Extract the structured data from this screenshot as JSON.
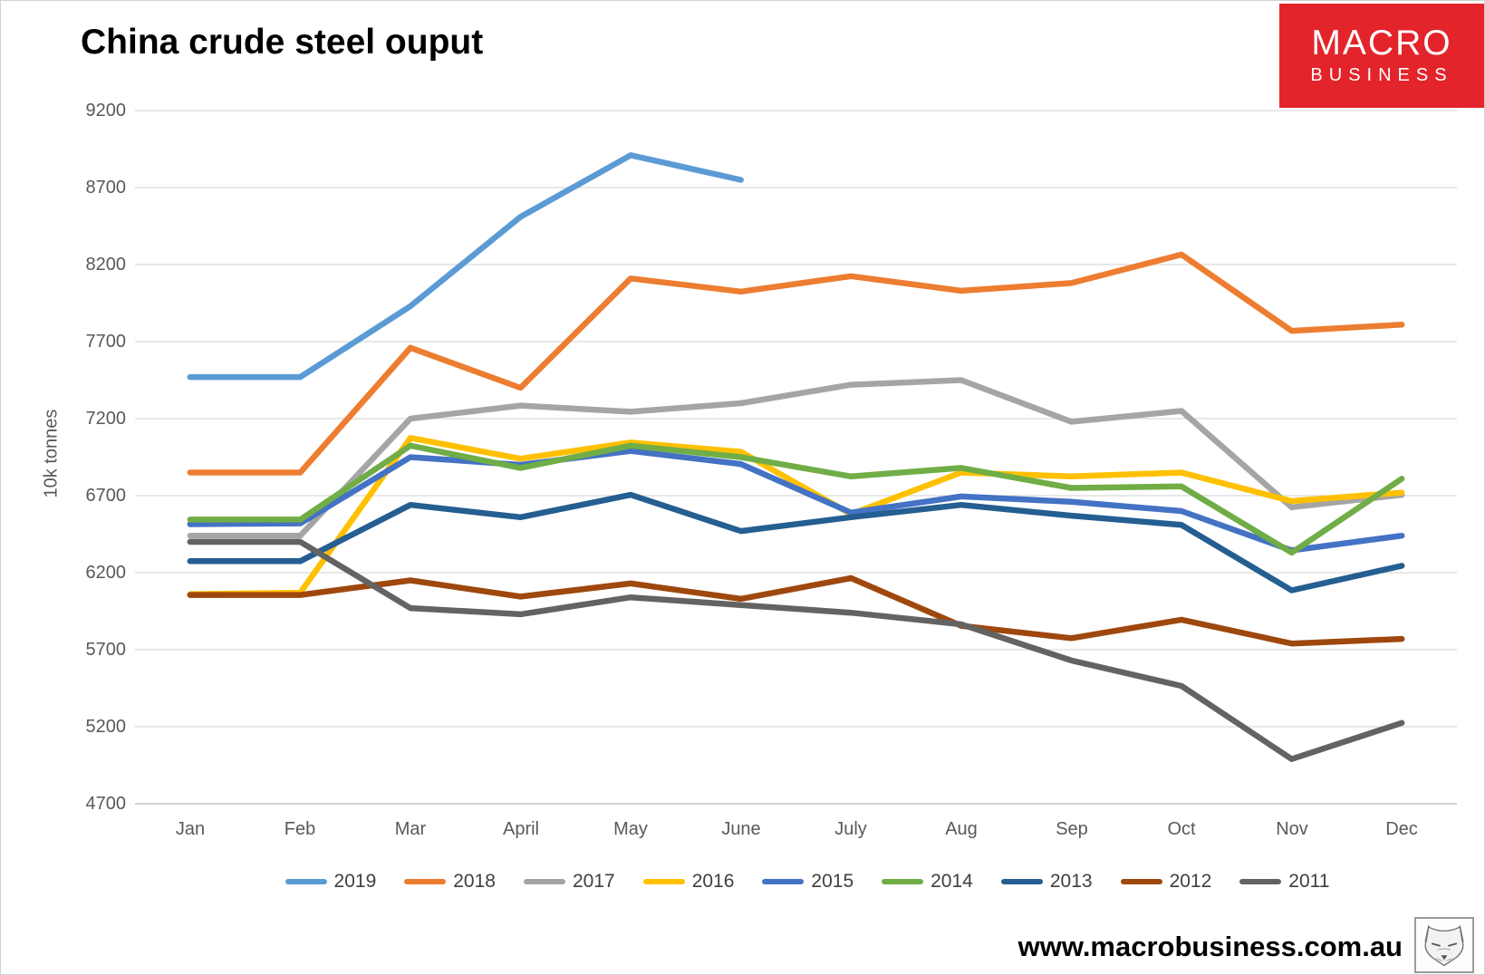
{
  "title": "China crude steel ouput",
  "logo": {
    "line1": "MACRO",
    "line2": "BUSINESS",
    "bg_color": "#E3242B"
  },
  "footer": {
    "website": "www.macrobusiness.com.au",
    "logo_icon": "wolf-sketch-icon"
  },
  "axis": {
    "ylabel": "10k tonnes",
    "y_ticks": [
      "9200",
      "8700",
      "8200",
      "7700",
      "7200",
      "6700",
      "6200",
      "5700",
      "5200",
      "4700"
    ],
    "grid_color": "#D9D9D9",
    "axis_color": "#C0C0C0",
    "text_color": "#595959"
  },
  "chart_data": {
    "type": "line",
    "title": "China crude steel ouput",
    "xlabel": "",
    "ylabel": "10k tonnes",
    "ylim": [
      4700,
      9200
    ],
    "ytick_step": 500,
    "grid": true,
    "legend_position": "bottom",
    "categories": [
      "Jan",
      "Feb",
      "Mar",
      "April",
      "May",
      "June",
      "July",
      "Aug",
      "Sep",
      "Oct",
      "Nov",
      "Dec"
    ],
    "series": [
      {
        "name": "2019",
        "color": "#5B9BD5",
        "values": [
          7470,
          7470,
          7930,
          8510,
          8910,
          8750,
          null,
          null,
          null,
          null,
          null,
          null
        ]
      },
      {
        "name": "2018",
        "color": "#ED7D31",
        "values": [
          6850,
          6850,
          7660,
          7400,
          8110,
          8025,
          8125,
          8030,
          8080,
          8265,
          7770,
          7810
        ]
      },
      {
        "name": "2017",
        "color": "#A5A5A5",
        "values": [
          6440,
          6440,
          7200,
          7285,
          7245,
          7300,
          7420,
          7450,
          7180,
          7250,
          6625,
          6705
        ]
      },
      {
        "name": "2016",
        "color": "#FFC000",
        "values": [
          6060,
          6070,
          7075,
          6940,
          7045,
          6985,
          6580,
          6850,
          6825,
          6850,
          6665,
          6720
        ]
      },
      {
        "name": "2015",
        "color": "#4472C4",
        "values": [
          6515,
          6520,
          6950,
          6900,
          6990,
          6905,
          6590,
          6695,
          6660,
          6600,
          6345,
          6440
        ]
      },
      {
        "name": "2014",
        "color": "#70AD47",
        "values": [
          6545,
          6545,
          7025,
          6880,
          7025,
          6950,
          6825,
          6880,
          6750,
          6760,
          6330,
          6810
        ]
      },
      {
        "name": "2013",
        "color": "#255E91",
        "values": [
          6275,
          6275,
          6640,
          6560,
          6705,
          6470,
          6560,
          6640,
          6570,
          6510,
          6085,
          6245
        ]
      },
      {
        "name": "2012",
        "color": "#9E480E",
        "values": [
          6055,
          6055,
          6150,
          6045,
          6130,
          6030,
          6165,
          5855,
          5775,
          5895,
          5740,
          5770
        ]
      },
      {
        "name": "2011",
        "color": "#636363",
        "values": [
          6400,
          6400,
          5970,
          5930,
          6040,
          5990,
          5940,
          5865,
          5630,
          5465,
          4990,
          5225
        ]
      }
    ]
  }
}
